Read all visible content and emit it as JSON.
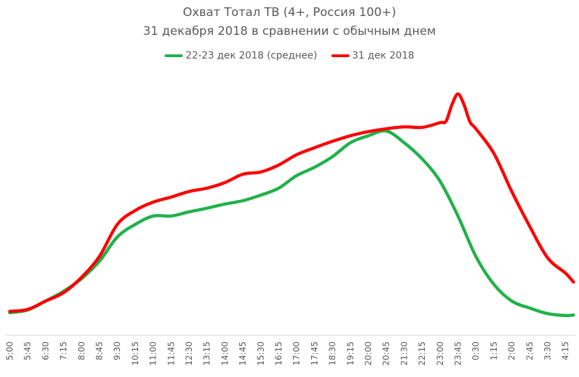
{
  "chart_data": {
    "type": "line",
    "title": "Охват Тотал ТВ (4+, Россия 100+)",
    "subtitle": "31 декабря 2018 в сравнении с обычным днем",
    "xlabel": "",
    "ylabel": "",
    "x_unit": "minutes since 5:00",
    "ylim": [
      0,
      100
    ],
    "y_note": "relative scale (no y axis shown)",
    "legend_position": "top",
    "grid": false,
    "tick_labels": [
      "5:00",
      "5:45",
      "6:30",
      "7:15",
      "8:00",
      "8:45",
      "9:30",
      "10:15",
      "11:00",
      "11:45",
      "12:30",
      "13:15",
      "14:00",
      "14:45",
      "15:30",
      "16:15",
      "17:00",
      "17:45",
      "18:30",
      "19:15",
      "20:00",
      "20:45",
      "21:30",
      "22:15",
      "23:00",
      "23:45",
      "0:30",
      "1:15",
      "2:00",
      "2:45",
      "3:30",
      "4:15"
    ],
    "series": [
      {
        "name": "22-23 дек 2018 (среднее)",
        "color": "#1fb24a",
        "x": [
          0,
          45,
          90,
          135,
          180,
          225,
          270,
          315,
          360,
          405,
          450,
          495,
          540,
          585,
          630,
          675,
          720,
          765,
          810,
          855,
          900,
          945,
          990,
          1035,
          1080,
          1125,
          1170,
          1215,
          1260,
          1305,
          1350,
          1395,
          1415
        ],
        "y": [
          7.8,
          8.8,
          12,
          15.5,
          20,
          26.3,
          35,
          39.5,
          42.5,
          42.5,
          44,
          45.3,
          46.8,
          48,
          50,
          52.5,
          57,
          60,
          63.8,
          68.8,
          71.3,
          73,
          68.8,
          63,
          55,
          42.5,
          28,
          18,
          12,
          9.5,
          7.5,
          6.8,
          7
        ]
      },
      {
        "name": "31 дек 2018",
        "color": "#ff0000",
        "x": [
          0,
          45,
          90,
          135,
          180,
          225,
          270,
          315,
          360,
          405,
          450,
          495,
          540,
          585,
          630,
          675,
          720,
          765,
          810,
          855,
          900,
          945,
          990,
          1035,
          1080,
          1095,
          1110,
          1125,
          1140,
          1155,
          1170,
          1215,
          1260,
          1305,
          1350,
          1395,
          1415
        ],
        "y": [
          8.3,
          9,
          12,
          15,
          20.5,
          28,
          39.5,
          44.5,
          47.5,
          49.3,
          51.3,
          52.5,
          54.5,
          57.5,
          58.3,
          60.8,
          64.5,
          67,
          69.3,
          71.3,
          72.8,
          73.8,
          74.5,
          74.3,
          76,
          76.5,
          82.5,
          86.3,
          82.5,
          76.3,
          73.8,
          65,
          51.3,
          38.8,
          27.5,
          22,
          18.8
        ]
      }
    ]
  }
}
